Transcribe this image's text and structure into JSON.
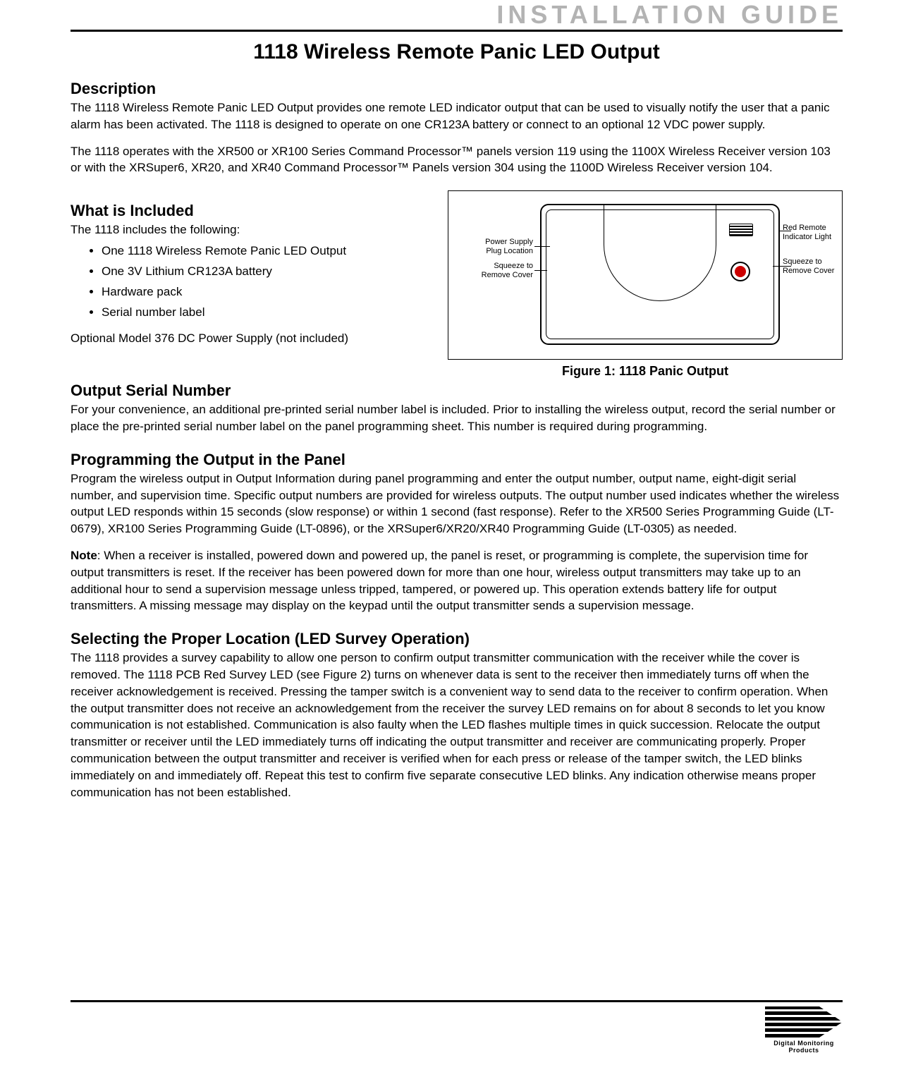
{
  "banner": "INSTALLATION GUIDE",
  "title": "1118 Wireless Remote Panic LED Output",
  "sections": {
    "description": {
      "head": "Description",
      "p1": "The 1118 Wireless Remote Panic LED Output provides one remote LED indicator output that can be used to visually notify the user that a panic alarm has been activated.  The 1118 is designed to operate on one CR123A battery or connect to an optional 12 VDC power supply.",
      "p2": "The 1118 operates with the XR500 or XR100 Series Command Processor™ panels version 119 using the 1100X Wireless Receiver version 103 or with the XRSuper6, XR20, and XR40 Command Processor™ Panels version 304 using the 1100D Wireless Receiver version 104."
    },
    "included": {
      "head": "What is Included",
      "intro": "The 1118 includes the following:",
      "items": [
        "One 1118 Wireless Remote Panic LED Output",
        "One 3V Lithium CR123A battery",
        "Hardware pack",
        "Serial number label"
      ],
      "optional": "Optional Model 376 DC Power Supply (not included)"
    },
    "serial": {
      "head": "Output Serial Number",
      "p1": "For your convenience, an additional pre-printed serial number label is included.  Prior to installing the wireless output, record the serial number or place the pre-printed serial number label on the panel programming sheet.  This number is required during programming."
    },
    "programming": {
      "head": "Programming the Output in the Panel",
      "p1": "Program the wireless output in Output Information during panel programming and enter the output number, output name, eight-digit serial number, and supervision time.  Specific output numbers are provided for wireless outputs. The output number used indicates whether the wireless output LED responds within 15 seconds (slow response) or within 1 second (fast response).  Refer to the XR500 Series Programming Guide (LT-0679), XR100 Series Programming Guide (LT-0896), or the XRSuper6/XR20/XR40 Programming Guide (LT-0305) as needed.",
      "note_label": "Note",
      "note_body": ":  When a receiver is installed, powered down and powered up, the panel is reset, or programming is complete, the supervision time for output transmitters is reset.  If the receiver has been powered down for more than one hour, wireless output transmitters may take up to an additional hour to send a supervision message unless tripped, tampered, or powered up.  This operation extends battery life for output transmitters.  A missing message may display on the keypad until the output transmitter sends a supervision message."
    },
    "location": {
      "head": "Selecting the Proper Location (LED Survey Operation)",
      "p1": "The 1118 provides a survey capability to allow one person to confirm output transmitter communication with the receiver while the cover is removed.  The 1118 PCB Red Survey LED (see Figure 2) turns on whenever data is sent to the receiver then immediately turns off when the receiver acknowledgement is received.  Pressing the tamper switch is a convenient way to send data to the receiver to confirm operation.  When the output transmitter does not receive an acknowledgement from the receiver the survey LED remains on for about 8 seconds to let you know communication is not established.  Communication is also faulty when the LED flashes multiple times in quick succession.  Relocate the output transmitter or receiver until the LED immediately turns off indicating the output transmitter and receiver are communicating properly.  Proper communication between the output transmitter and receiver is verified when for each press or release of the tamper switch, the LED blinks immediately on and immediately off.  Repeat this test to confirm five separate consecutive LED blinks.  Any indication otherwise means proper communication has not been established."
    }
  },
  "figure": {
    "caption": "Figure 1: 1118 Panic Output",
    "callouts": {
      "power_supply": "Power Supply\nPlug Location",
      "squeeze_left": "Squeeze to\nRemove Cover",
      "red_remote": "Red Remote\nIndicator Light",
      "squeeze_right": "Squeeze to\nRemove Cover"
    },
    "led_color": "#cc0000"
  },
  "footer": {
    "brand": "Digital Monitoring Products"
  },
  "colors": {
    "banner_text": "#b3b3b3",
    "rule": "#000000",
    "text": "#000000",
    "background": "#ffffff"
  },
  "typography": {
    "banner_fontsize": 36,
    "title_fontsize": 30,
    "section_head_fontsize": 22,
    "body_fontsize": 17,
    "callout_fontsize": 11,
    "caption_fontsize": 18
  }
}
